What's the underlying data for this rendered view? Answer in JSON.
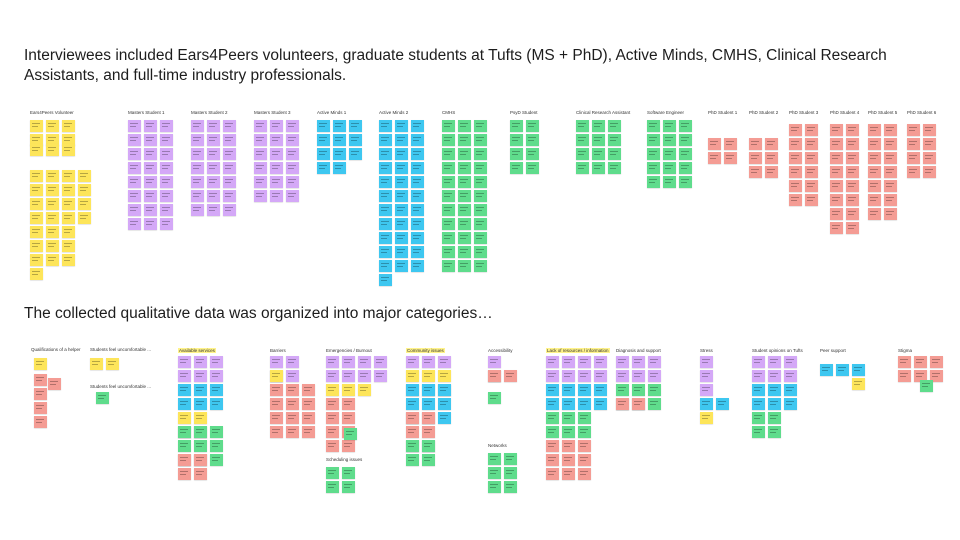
{
  "slide": {
    "heading_top": "Interviewees included Ears4Peers volunteers, graduate students at Tufts (MS + PhD),  Active Minds, CMHS, Clinical Research Assistants, and full-time industry professionals.",
    "heading_bottom": "The collected qualitative data was organized into major categories…"
  },
  "colors": {
    "yellow": "#fde55a",
    "purple": "#d4a8f7",
    "blue": "#3ec7f0",
    "green": "#5fdc8c",
    "red": "#f49c94"
  },
  "interview_groups": [
    {
      "name": "Ears4Peers Volunteer",
      "color": "yellow"
    },
    {
      "name": "Masters Student 1",
      "color": "purple"
    },
    {
      "name": "Masters Student 2",
      "color": "purple"
    },
    {
      "name": "Masters Student 3",
      "color": "purple"
    },
    {
      "name": "Active Minds 1",
      "color": "blue"
    },
    {
      "name": "Active Minds 2",
      "color": "blue"
    },
    {
      "name": "CMHS",
      "color": "green"
    },
    {
      "name": "PsyD Student",
      "color": "green"
    },
    {
      "name": "Clinical Research Assistant",
      "color": "green"
    },
    {
      "name": "Software Engineer",
      "color": "green"
    },
    {
      "name": "PhD Student 1",
      "color": "red"
    },
    {
      "name": "PhD Student 2",
      "color": "red"
    },
    {
      "name": "PhD Student 3",
      "color": "red"
    },
    {
      "name": "PhD Student 4",
      "color": "red"
    },
    {
      "name": "PhD Student 5",
      "color": "red"
    },
    {
      "name": "PhD Student 6",
      "color": "red"
    }
  ],
  "category_groups": [
    {
      "name": "Qualifications of a helper"
    },
    {
      "name": "Students feel uncomfortable ..."
    },
    {
      "name": "Students feel uncomfortable ..."
    },
    {
      "name": "Available services"
    },
    {
      "name": "Barriers"
    },
    {
      "name": "Emergencies / Burnout"
    },
    {
      "name": "Community issues"
    },
    {
      "name": "Accessibility"
    },
    {
      "name": "Lack of resources / information"
    },
    {
      "name": "Diagnosis and support"
    },
    {
      "name": "Stress"
    },
    {
      "name": "Student opinions on Tufts"
    },
    {
      "name": "Peer support"
    },
    {
      "name": "Stigma"
    },
    {
      "name": "Scheduling issues"
    },
    {
      "name": "Networks"
    }
  ]
}
